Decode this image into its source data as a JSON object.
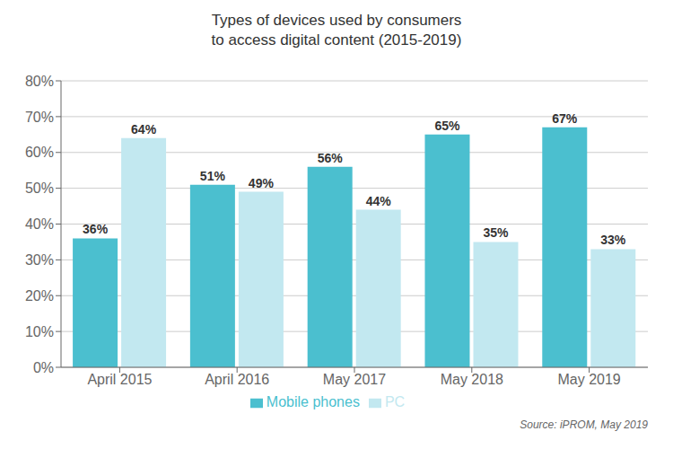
{
  "chart_data": {
    "type": "bar",
    "title": "Types of devices used by consumers\nto access digital content (2015-2019)",
    "categories": [
      "April 2015",
      "April 2016",
      "May 2017",
      "May 2018",
      "May 2019"
    ],
    "series": [
      {
        "name": "Mobile phones",
        "color": "#4bbfcf",
        "values": [
          36,
          51,
          56,
          65,
          67
        ],
        "value_labels": [
          "36%",
          "51%",
          "56%",
          "65%",
          "67%"
        ]
      },
      {
        "name": "PC",
        "color": "#c2e8f0",
        "values": [
          64,
          49,
          44,
          35,
          33
        ],
        "value_labels": [
          "64%",
          "49%",
          "44%",
          "35%",
          "33%"
        ]
      }
    ],
    "ylim": [
      0,
      80
    ],
    "yticks": [
      {
        "value": 0,
        "label": "0%"
      },
      {
        "value": 10,
        "label": "10%"
      },
      {
        "value": 20,
        "label": "20%"
      },
      {
        "value": 30,
        "label": "30%"
      },
      {
        "value": 40,
        "label": "40%"
      },
      {
        "value": 50,
        "label": "50%"
      },
      {
        "value": 60,
        "label": "60%"
      },
      {
        "value": 70,
        "label": "70%"
      },
      {
        "value": 80,
        "label": "80%"
      }
    ],
    "grid": true,
    "legend": "bottom",
    "data_labels": true,
    "annotations": [
      "Source: iPROM, May 2019"
    ]
  }
}
